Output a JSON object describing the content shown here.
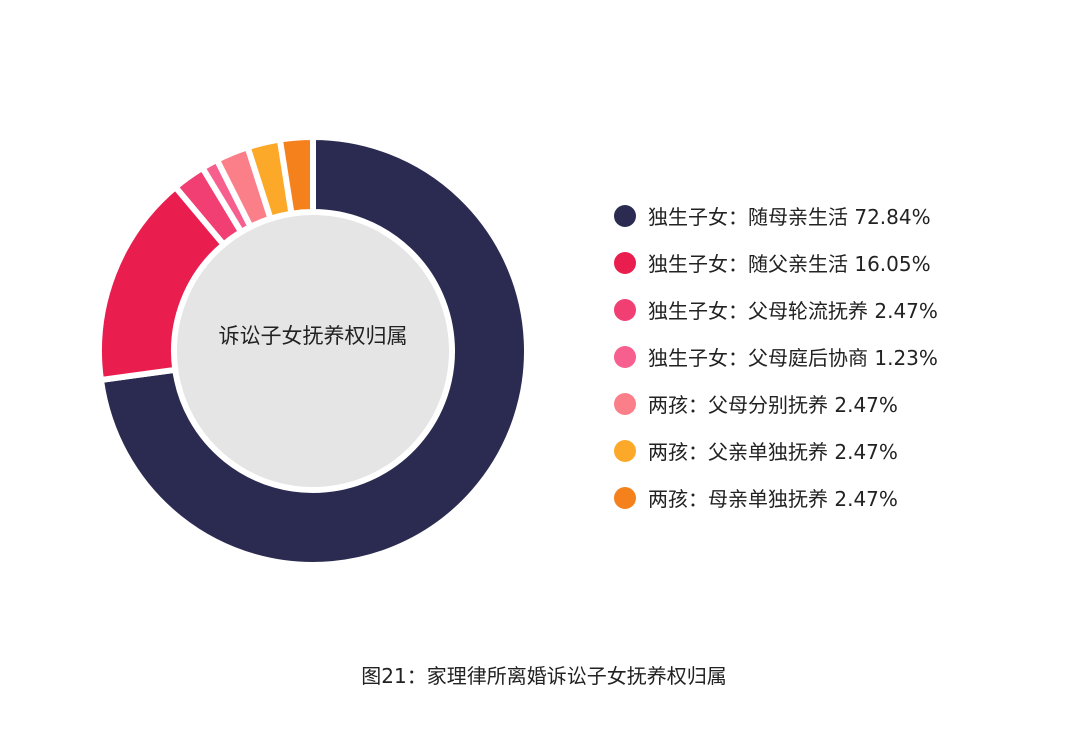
{
  "chart_data": {
    "type": "pie",
    "variant": "donut",
    "center_label": "诉讼子女抚养权归属",
    "caption": "图21：家理律所离婚诉讼子女抚养权归属",
    "legend_position": "right",
    "slices": [
      {
        "label": "独生子女：随母亲生活 72.84%",
        "value": 72.84,
        "color": "#2b2b52"
      },
      {
        "label": "独生子女：随父亲生活 16.05%",
        "value": 16.05,
        "color": "#e91e4f"
      },
      {
        "label": "独生子女：父母轮流抚养 2.47%",
        "value": 2.47,
        "color": "#f23f73"
      },
      {
        "label": "独生子女：父母庭后协商 1.23%",
        "value": 1.23,
        "color": "#f75f8e"
      },
      {
        "label": "两孩：父母分别抚养 2.47%",
        "value": 2.47,
        "color": "#fb7f89"
      },
      {
        "label": "两孩：父亲单独抚养 2.47%",
        "value": 2.47,
        "color": "#fca92a"
      },
      {
        "label": "两孩：母亲单独抚养 2.47%",
        "value": 2.47,
        "color": "#f5811c"
      }
    ]
  }
}
